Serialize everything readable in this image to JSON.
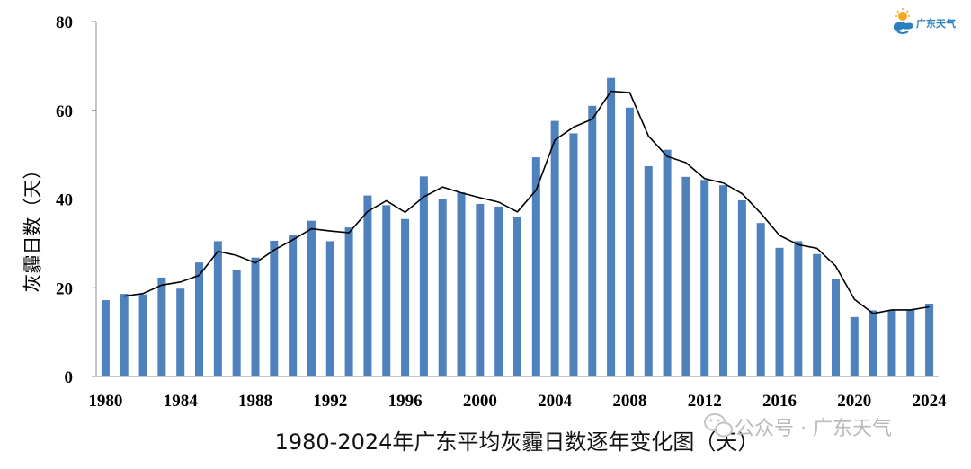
{
  "chart_data": {
    "type": "bar",
    "title": "1980-2024年广东平均灰霾日数逐年变化图（天）",
    "ylabel": "灰霾日数（天）",
    "xlabel": "",
    "ylim": [
      0,
      80
    ],
    "yticks": [
      0,
      20,
      40,
      60,
      80
    ],
    "xticks": [
      1980,
      1984,
      1988,
      1992,
      1996,
      2000,
      2004,
      2008,
      2012,
      2016,
      2020,
      2024
    ],
    "categories": [
      1980,
      1981,
      1982,
      1983,
      1984,
      1985,
      1986,
      1987,
      1988,
      1989,
      1990,
      1991,
      1992,
      1993,
      1994,
      1995,
      1996,
      1997,
      1998,
      1999,
      2000,
      2001,
      2002,
      2003,
      2004,
      2005,
      2006,
      2007,
      2008,
      2009,
      2010,
      2011,
      2012,
      2013,
      2014,
      2015,
      2016,
      2017,
      2018,
      2019,
      2020,
      2021,
      2022,
      2023,
      2024
    ],
    "values": [
      17.2,
      18.6,
      18.5,
      22.3,
      19.8,
      25.7,
      30.5,
      24.0,
      26.8,
      30.6,
      31.9,
      35.1,
      30.5,
      33.6,
      40.8,
      38.6,
      35.5,
      45.1,
      40.0,
      41.5,
      38.9,
      38.3,
      36.0,
      49.4,
      57.6,
      54.8,
      61.0,
      67.3,
      60.6,
      47.4,
      51.1,
      45.0,
      44.3,
      43.1,
      39.7,
      34.6,
      29.0,
      30.5,
      27.6,
      22.0,
      13.4,
      14.9,
      15.0,
      15.0,
      16.4
    ],
    "trend_line": [
      null,
      18.1,
      18.7,
      20.6,
      21.3,
      22.8,
      28.2,
      27.3,
      25.6,
      28.5,
      30.8,
      33.3,
      32.8,
      32.4,
      37.2,
      39.6,
      37.0,
      40.5,
      42.7,
      41.4,
      40.3,
      39.3,
      37.1,
      42.0,
      53.3,
      56.2,
      58.0,
      64.3,
      64.0,
      54.2,
      49.6,
      48.2,
      44.6,
      43.6,
      41.2,
      36.8,
      31.8,
      29.7,
      28.9,
      24.9,
      17.4,
      14.2,
      15.0,
      15.0,
      15.7
    ],
    "bar_color": "#4f81bd",
    "line_color": "#000000",
    "grid": false,
    "legend": "none"
  },
  "logo": {
    "text": "广东天气",
    "icon": "sun-cloud-icon"
  },
  "watermark": {
    "text": "公众号 · 广东天气",
    "icon": "wechat-icon"
  }
}
